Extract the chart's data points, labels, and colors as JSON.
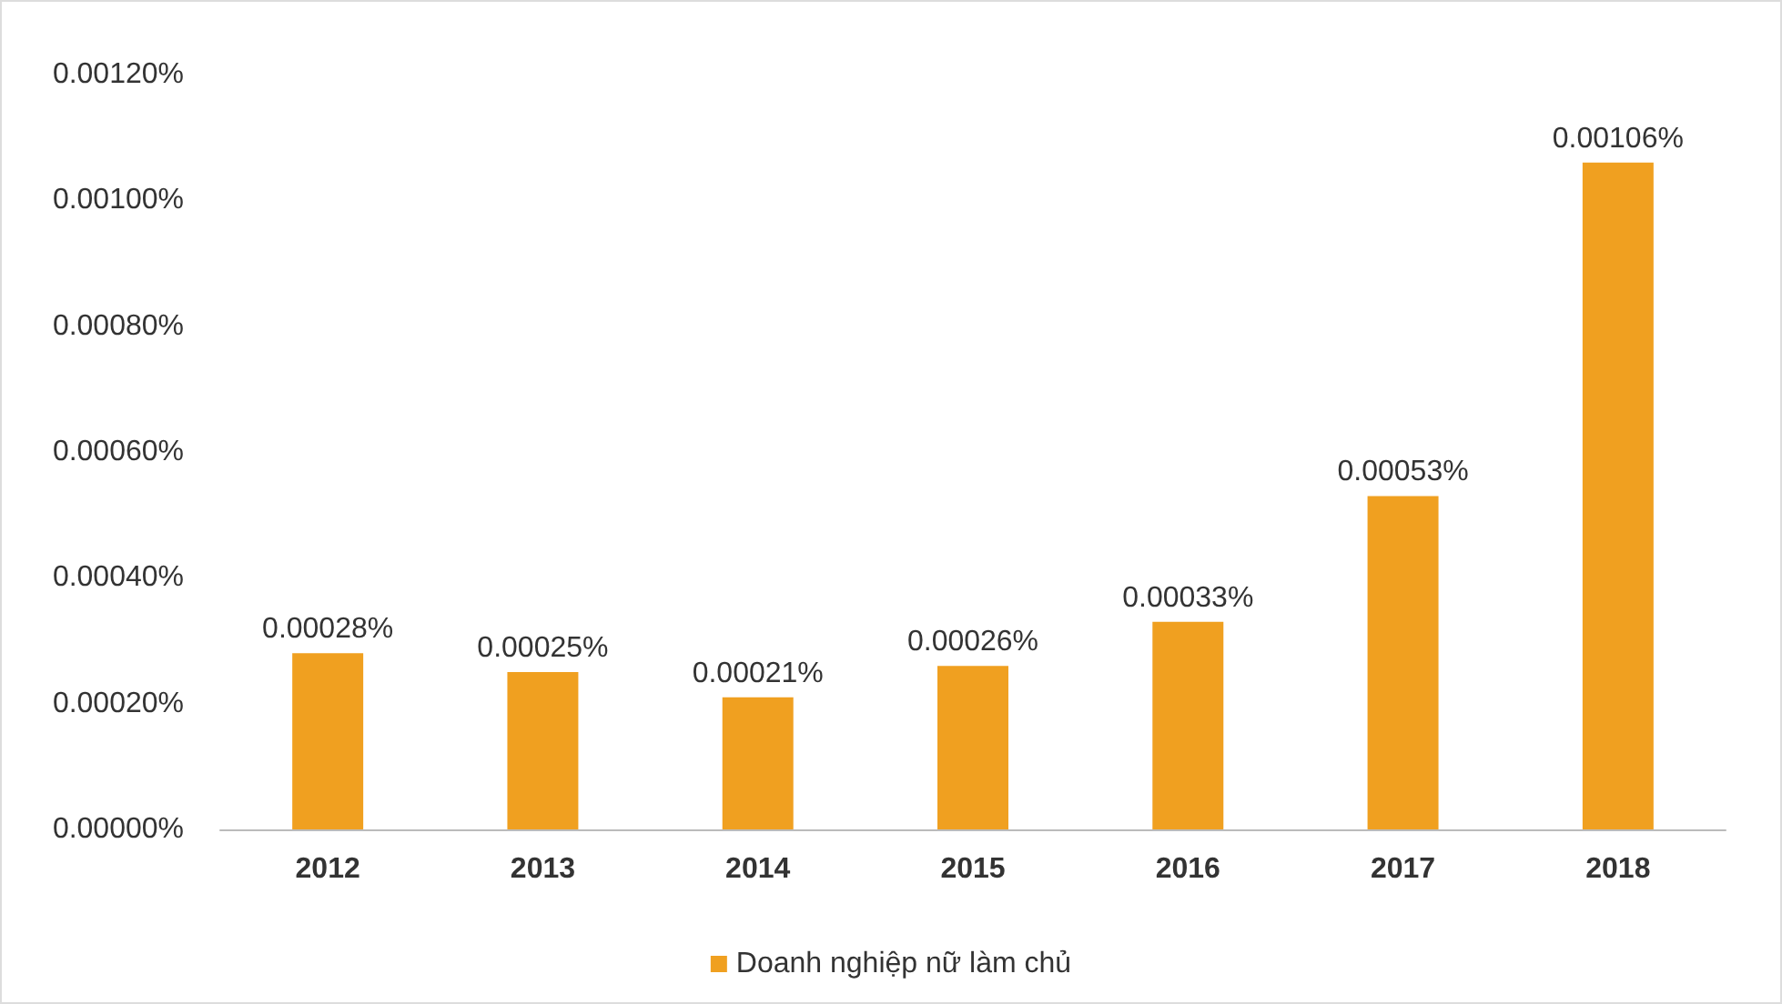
{
  "chart_data": {
    "type": "bar",
    "categories": [
      "2012",
      "2013",
      "2014",
      "2015",
      "2016",
      "2017",
      "2018"
    ],
    "series": [
      {
        "name": "Doanh nghiệp nữ làm chủ",
        "color": "#f0a020",
        "values": [
          0.00028,
          0.00025,
          0.00021,
          0.00026,
          0.00033,
          0.00053,
          0.00106
        ],
        "value_labels": [
          "0.00028%",
          "0.00025%",
          "0.00021%",
          "0.00026%",
          "0.00033%",
          "0.00053%",
          "0.00106%"
        ]
      }
    ],
    "ylim": [
      0,
      0.0012
    ],
    "yticks": [
      {
        "value": 0,
        "label": "0.00000%"
      },
      {
        "value": 0.0002,
        "label": "0.00020%"
      },
      {
        "value": 0.0004,
        "label": "0.00040%"
      },
      {
        "value": 0.0006,
        "label": "0.00060%"
      },
      {
        "value": 0.0008,
        "label": "0.00080%"
      },
      {
        "value": 0.001,
        "label": "0.00100%"
      },
      {
        "value": 0.0012,
        "label": "0.00120%"
      }
    ],
    "grid": false,
    "legend": "bottom"
  }
}
